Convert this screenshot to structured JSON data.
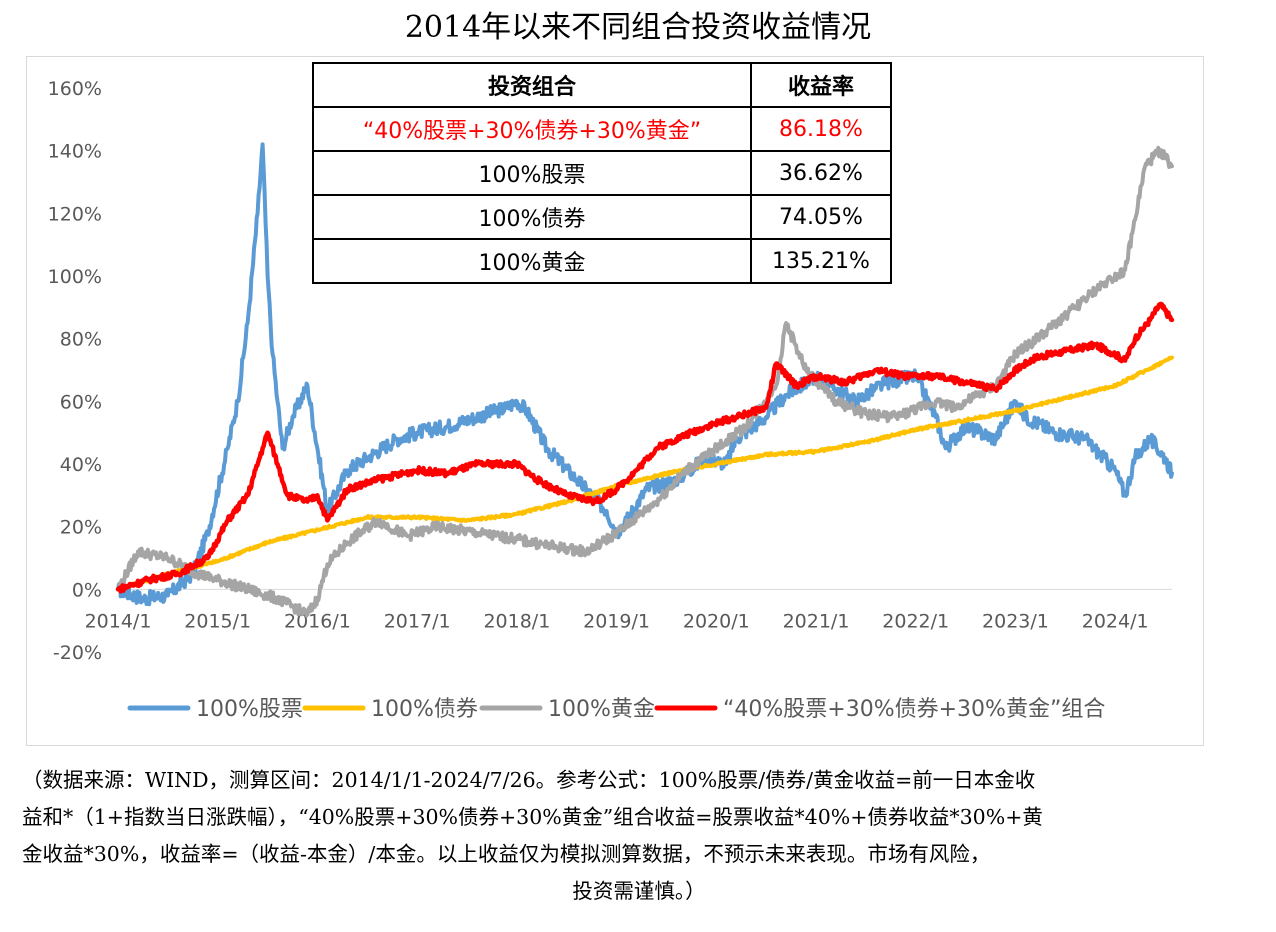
{
  "title": "2014年以来不同组合投资收益情况",
  "table": {
    "headers": [
      "投资组合",
      "收益率"
    ],
    "rows": [
      {
        "name": "“40%股票+30%债券+30%黄金”",
        "value": "86.18%",
        "highlight": true
      },
      {
        "name": "100%股票",
        "value": "36.62%"
      },
      {
        "name": "100%债券",
        "value": "74.05%"
      },
      {
        "name": "100%黄金",
        "value": "135.21%"
      }
    ]
  },
  "legend": [
    {
      "label": "100%股票",
      "color": "#5b9bd5"
    },
    {
      "label": "100%债券",
      "color": "#ffc000"
    },
    {
      "label": "100%黄金",
      "color": "#a5a5a5"
    },
    {
      "label": "“40%股票+30%债券+30%黄金”组合",
      "color": "#ff0000"
    }
  ],
  "note": {
    "line1": "（数据来源：WIND，测算区间：2014/1/1-2024/7/26。参考公式：100%股票/债券/黄金收益=前一日本金收",
    "line2": "益和*（1+指数当日涨跌幅），“40%股票+30%债券+30%黄金”组合收益=股票收益*40%+债券收益*30%+黄",
    "line3": "金收益*30%，收益率=（收益-本金）/本金。以上收益仅为模拟测算数据，不预示未来表现。市场有风险，",
    "line4": "投资需谨慎。）"
  },
  "chart_data": {
    "type": "line",
    "title": "2014年以来不同组合投资收益情况",
    "xlabel": "",
    "ylabel": "",
    "x_range": [
      2014.0,
      2024.57
    ],
    "ylim": [
      -20,
      160
    ],
    "y_tick_values": [
      -20,
      0,
      20,
      40,
      60,
      80,
      100,
      120,
      140,
      160
    ],
    "y_tick_labels": [
      "-20%",
      "0%",
      "20%",
      "40%",
      "60%",
      "80%",
      "100%",
      "120%",
      "140%",
      "160%"
    ],
    "x_tick_values": [
      2014,
      2015,
      2016,
      2017,
      2018,
      2019,
      2020,
      2021,
      2022,
      2023,
      2024
    ],
    "x_tick_labels": [
      "2014/1",
      "2015/1",
      "2016/1",
      "2017/1",
      "2018/1",
      "2019/1",
      "2020/1",
      "2021/1",
      "2022/1",
      "2023/1",
      "2024/1"
    ],
    "grid": false,
    "legend_position": "bottom",
    "series": [
      {
        "name": "100%股票",
        "color": "#5b9bd5",
        "x": [
          2014.0,
          2014.25,
          2014.5,
          2014.75,
          2014.9,
          2015.1,
          2015.2,
          2015.3,
          2015.4,
          2015.45,
          2015.5,
          2015.55,
          2015.6,
          2015.65,
          2015.75,
          2015.9,
          2016.0,
          2016.1,
          2016.3,
          2016.5,
          2016.8,
          2017.0,
          2017.3,
          2017.6,
          2017.9,
          2018.0,
          2018.1,
          2018.3,
          2018.6,
          2018.9,
          2019.0,
          2019.1,
          2019.3,
          2019.6,
          2019.9,
          2020.1,
          2020.2,
          2020.5,
          2020.7,
          2021.0,
          2021.15,
          2021.4,
          2021.7,
          2022.0,
          2022.2,
          2022.3,
          2022.5,
          2022.8,
          2023.0,
          2023.1,
          2023.4,
          2023.7,
          2024.0,
          2024.1,
          2024.2,
          2024.35,
          2024.5,
          2024.57
        ],
        "values": [
          0,
          -3,
          -2,
          5,
          18,
          45,
          60,
          85,
          120,
          142,
          100,
          75,
          60,
          45,
          55,
          65,
          45,
          25,
          38,
          42,
          48,
          50,
          52,
          55,
          58,
          60,
          57,
          45,
          35,
          25,
          18,
          22,
          32,
          35,
          42,
          40,
          48,
          55,
          62,
          68,
          65,
          60,
          66,
          68,
          55,
          45,
          52,
          48,
          60,
          55,
          50,
          48,
          38,
          30,
          42,
          48,
          42,
          37
        ]
      },
      {
        "name": "100%债券",
        "color": "#ffc000",
        "x": [
          2014.0,
          2014.5,
          2015.0,
          2015.5,
          2016.0,
          2016.5,
          2017.0,
          2017.5,
          2018.0,
          2018.5,
          2019.0,
          2019.5,
          2020.0,
          2020.5,
          2021.0,
          2021.5,
          2022.0,
          2022.5,
          2023.0,
          2023.5,
          2024.0,
          2024.57
        ],
        "values": [
          0,
          5,
          9,
          15,
          19,
          23,
          23,
          22,
          24,
          28,
          33,
          37,
          40,
          43,
          44,
          47,
          51,
          54,
          57,
          61,
          65,
          74
        ]
      },
      {
        "name": "100%黄金",
        "color": "#a5a5a5",
        "x": [
          2014.0,
          2014.2,
          2014.5,
          2014.8,
          2015.0,
          2015.3,
          2015.6,
          2015.9,
          2016.0,
          2016.1,
          2016.3,
          2016.6,
          2016.9,
          2017.2,
          2017.6,
          2018.0,
          2018.3,
          2018.7,
          2019.0,
          2019.4,
          2019.7,
          2020.0,
          2020.3,
          2020.6,
          2020.7,
          2020.9,
          2021.2,
          2021.5,
          2021.8,
          2022.2,
          2022.4,
          2022.8,
          2023.0,
          2023.3,
          2023.6,
          2023.9,
          2024.1,
          2024.2,
          2024.3,
          2024.45,
          2024.57
        ],
        "values": [
          0,
          12,
          10,
          5,
          3,
          0,
          -3,
          -8,
          -3,
          8,
          15,
          22,
          17,
          20,
          18,
          16,
          14,
          12,
          18,
          28,
          38,
          45,
          52,
          65,
          85,
          70,
          60,
          56,
          55,
          60,
          58,
          65,
          75,
          82,
          90,
          98,
          102,
          118,
          135,
          140,
          135
        ]
      },
      {
        "name": "“40%股票+30%债券+30%黄金”组合",
        "color": "#ff0000",
        "x": [
          2014.0,
          2014.3,
          2014.6,
          2014.9,
          2015.1,
          2015.3,
          2015.45,
          2015.5,
          2015.6,
          2015.7,
          2015.9,
          2016.0,
          2016.1,
          2016.3,
          2016.6,
          2017.0,
          2017.3,
          2017.6,
          2018.0,
          2018.2,
          2018.5,
          2018.8,
          2019.0,
          2019.2,
          2019.4,
          2019.6,
          2019.9,
          2020.2,
          2020.5,
          2020.6,
          2020.8,
          2021.0,
          2021.3,
          2021.6,
          2021.9,
          2022.2,
          2022.5,
          2022.8,
          2023.0,
          2023.2,
          2023.5,
          2023.8,
          2024.0,
          2024.1,
          2024.2,
          2024.35,
          2024.45,
          2024.57
        ],
        "values": [
          0,
          3,
          5,
          10,
          22,
          30,
          45,
          50,
          40,
          30,
          28,
          30,
          22,
          32,
          35,
          38,
          37,
          40,
          40,
          35,
          30,
          28,
          32,
          38,
          45,
          48,
          52,
          55,
          58,
          72,
          65,
          68,
          66,
          70,
          68,
          68,
          66,
          64,
          70,
          74,
          76,
          78,
          75,
          73,
          80,
          86,
          91,
          86
        ]
      }
    ]
  }
}
